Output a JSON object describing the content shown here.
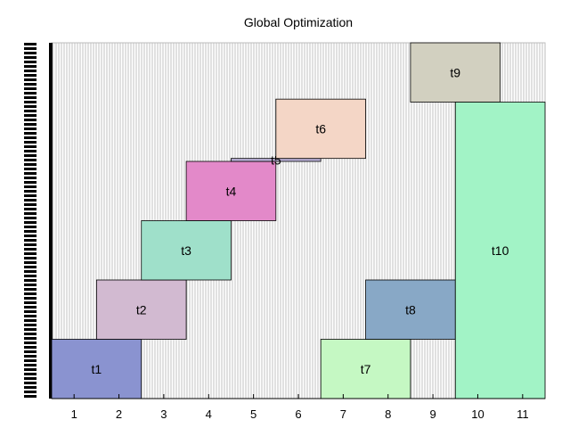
{
  "chart_data": {
    "type": "bar",
    "title": "Global Optimization",
    "xlabel": "",
    "ylabel": "",
    "xlim": [
      0.5,
      11.5
    ],
    "ylim": [
      0,
      6
    ],
    "grid": true,
    "x_ticks": [
      "1",
      "2",
      "3",
      "4",
      "5",
      "6",
      "7",
      "8",
      "9",
      "10",
      "11"
    ],
    "tasks": [
      {
        "label": "t1",
        "x_start": 0.5,
        "x_end": 2.5,
        "y_start": 0.0,
        "y_end": 1.0,
        "color": "#8a93d0"
      },
      {
        "label": "t2",
        "x_start": 1.5,
        "x_end": 3.5,
        "y_start": 1.0,
        "y_end": 2.0,
        "color": "#d2bad1"
      },
      {
        "label": "t3",
        "x_start": 2.5,
        "x_end": 4.5,
        "y_start": 2.0,
        "y_end": 3.0,
        "color": "#9fe0ca"
      },
      {
        "label": "t4",
        "x_start": 3.5,
        "x_end": 5.5,
        "y_start": 3.0,
        "y_end": 4.0,
        "color": "#e389c9"
      },
      {
        "label": "t5",
        "x_start": 4.5,
        "x_end": 6.5,
        "y_start": 4.0,
        "y_end": 4.05,
        "color": "#b9b0d6"
      },
      {
        "label": "t6",
        "x_start": 5.5,
        "x_end": 7.5,
        "y_start": 4.05,
        "y_end": 5.05,
        "color": "#f4d6c6"
      },
      {
        "label": "t7",
        "x_start": 6.5,
        "x_end": 8.5,
        "y_start": 0.0,
        "y_end": 1.0,
        "color": "#c5f8c3"
      },
      {
        "label": "t8",
        "x_start": 7.5,
        "x_end": 9.5,
        "y_start": 1.0,
        "y_end": 2.0,
        "color": "#88a8c6"
      },
      {
        "label": "t9",
        "x_start": 8.5,
        "x_end": 10.5,
        "y_start": 5.0,
        "y_end": 6.0,
        "color": "#d2d0c0"
      },
      {
        "label": "t10",
        "x_start": 9.5,
        "x_end": 11.5,
        "y_start": 0.0,
        "y_end": 5.0,
        "color": "#a2f3c6"
      }
    ]
  }
}
